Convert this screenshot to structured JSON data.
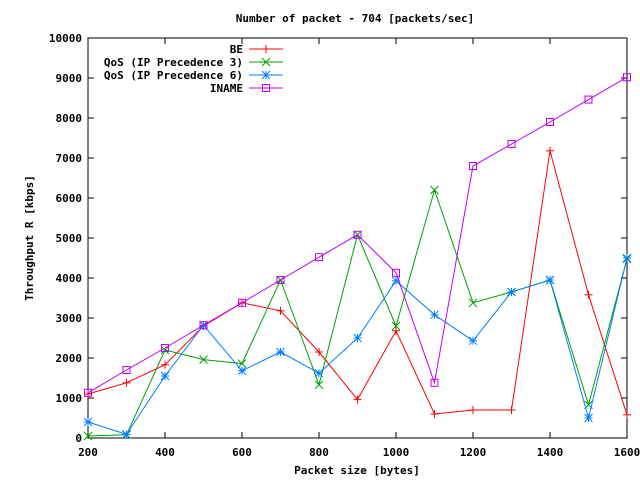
{
  "chart_data": {
    "type": "line",
    "title": "Number of packet - 704 [packets/sec]",
    "xlabel": "Packet size [bytes]",
    "ylabel": "Throughput R [kbps]",
    "xlim": [
      200,
      1600
    ],
    "ylim": [
      0,
      10000
    ],
    "x_ticks": [
      200,
      400,
      600,
      800,
      1000,
      1200,
      1400,
      1600
    ],
    "y_ticks": [
      0,
      1000,
      2000,
      3000,
      4000,
      5000,
      6000,
      7000,
      8000,
      9000,
      10000
    ],
    "grid": false,
    "legend_position": "top-left",
    "x": [
      200,
      300,
      400,
      500,
      600,
      700,
      800,
      900,
      1000,
      1100,
      1200,
      1300,
      1400,
      1500,
      1600
    ],
    "series": [
      {
        "name": "BE",
        "color": "#ff0000",
        "marker": "plus",
        "values": [
          1100,
          1380,
          1830,
          2800,
          3380,
          3180,
          2150,
          960,
          2680,
          600,
          700,
          700,
          7180,
          3580,
          580
        ]
      },
      {
        "name": "QoS (IP Precedence 3)",
        "color": "#00a000",
        "marker": "cross",
        "values": [
          50,
          80,
          2200,
          1960,
          1860,
          3950,
          1330,
          5080,
          2800,
          6200,
          3380,
          3650,
          3950,
          830,
          4480
        ]
      },
      {
        "name": "QoS (IP Precedence 6)",
        "color": "#0080ff",
        "marker": "star",
        "values": [
          400,
          90,
          1550,
          2820,
          1680,
          2150,
          1620,
          2500,
          3930,
          3080,
          2430,
          3650,
          3950,
          500,
          4500
        ]
      },
      {
        "name": "INAME",
        "color": "#c000ff",
        "marker": "square",
        "values": [
          1130,
          1700,
          2250,
          2820,
          3380,
          3950,
          4520,
          5080,
          4130,
          1380,
          6800,
          7350,
          7900,
          8460,
          9020
        ]
      }
    ]
  }
}
